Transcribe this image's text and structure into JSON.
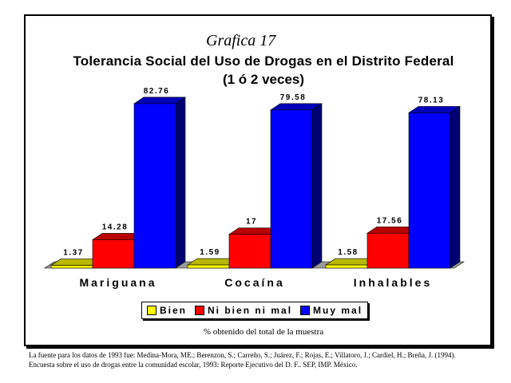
{
  "header": {
    "heading": "Grafica 17",
    "title": "Tolerancia Social del Uso de Drogas en el Distrito Federal",
    "subtitle": "(1 ó 2 veces)"
  },
  "footer": {
    "note": "% obtenido del total de la muestra",
    "source_line1": "La fuente para los datos de 1993 fue: Medina-Mora, ME.; Berenzon, S.; Carreño, S.; Juárez, F.; Rojas, E.; Villatoro, J.; Cardiel, H.; Breña, J. (1994).",
    "source_line2": "Encuesta sobre el uso de drogas entre la comunidad escolar, 1993: Reporte Ejecutivo del D. F.. SEP, IMP. México."
  },
  "chart_data": {
    "type": "bar",
    "categories": [
      "Mariguana",
      "Cocaína",
      "Inhalables"
    ],
    "series": [
      {
        "name": "Bien",
        "values": [
          1.37,
          1.59,
          1.58
        ],
        "labels": [
          "1.37",
          "1.59",
          "1.58"
        ],
        "color": "#ffff00"
      },
      {
        "name": "Ni bien ni mal",
        "values": [
          14.28,
          17,
          17.56
        ],
        "labels": [
          "14.28",
          "17",
          "17.56"
        ],
        "color": "#ff0000"
      },
      {
        "name": "Muy mal",
        "values": [
          82.76,
          79.58,
          78.13
        ],
        "labels": [
          "82.76",
          "79.58",
          "78.13"
        ],
        "color": "#0000ff"
      }
    ],
    "ylim": [
      0,
      100
    ],
    "grid": false,
    "legend_position": "bottom",
    "bar_style": "3d"
  }
}
